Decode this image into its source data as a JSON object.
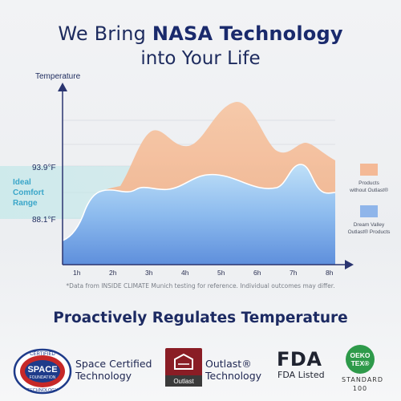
{
  "header": {
    "line1_prefix": "We Bring ",
    "line1_bold": "NASA Technology",
    "line2": "into Your Life"
  },
  "chart_data": {
    "type": "area",
    "ylabel": "Temperature",
    "x_ticks": [
      "1h",
      "2h",
      "3h",
      "4h",
      "5h",
      "6h",
      "7h",
      "8h"
    ],
    "y_markers": [
      {
        "label": "93.9°F",
        "value": 93.9
      },
      {
        "label": "88.1°F",
        "value": 88.1
      }
    ],
    "comfort_band": {
      "label_lines": [
        "Ideal",
        "Comfort",
        "Range"
      ],
      "low": 88.1,
      "high": 93.9
    },
    "series": [
      {
        "name": "Products without Outlast®",
        "color": "#f4b996"
      },
      {
        "name": "Dream Valley Outlast® Products",
        "color": "#8fb5ea"
      }
    ],
    "grid": true,
    "legend": "right"
  },
  "legend": {
    "item1_lines": [
      "Products",
      "without Outlast®"
    ],
    "item2_lines": [
      "Dream Valley",
      "Outlast® Products"
    ]
  },
  "footnote": "*Data from INSIDE CLIMATE Munich testing for reference. Individual outcomes may differ.",
  "subtitle": "Proactively Regulates Temperature",
  "badges": {
    "space": {
      "line1": "Space Certified",
      "line2": "Technology",
      "seal_top": "CERTIFIED",
      "seal_mid": "SPACE",
      "seal_mid2": "FOUNDATION",
      "seal_bottom": "TECHNOLOGY"
    },
    "outlast": {
      "line1": "Outlast®",
      "line2": "Technology",
      "logo": "Outlast"
    },
    "fda": {
      "big": "FDA",
      "small": "FDA Listed"
    },
    "oeko": {
      "logo_line1": "OEKO",
      "logo_line2": "TEX®",
      "line1": "STANDARD",
      "line2": "100"
    }
  }
}
